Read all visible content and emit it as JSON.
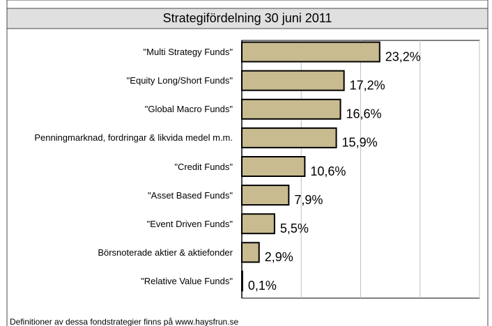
{
  "chart_data": {
    "type": "bar",
    "orientation": "horizontal",
    "title": "Strategifördelning 30 juni 2011",
    "categories": [
      "\"Multi Strategy Funds\"",
      "\"Equity Long/Short Funds\"",
      "\"Global Macro Funds\"",
      "Penningmarknad, fordringar & likvida medel m.m.",
      "\"Credit Funds\"",
      "\"Asset Based Funds\"",
      "\"Event Driven Funds\"",
      "Börsnoterade aktier & aktiefonder",
      "\"Relative Value Funds\""
    ],
    "values": [
      23.2,
      17.2,
      16.6,
      15.9,
      10.6,
      7.9,
      5.5,
      2.9,
      0.1
    ],
    "value_labels": [
      "23,2%",
      "17,2%",
      "16,6%",
      "15,9%",
      "10,6%",
      "7,9%",
      "5,5%",
      "2,9%",
      "0,1%"
    ],
    "color": "#c8bb90",
    "xlim": [
      0,
      40
    ],
    "xticks": [
      0,
      10,
      20,
      30,
      40
    ],
    "grid": true,
    "footnote": "Definitioner av dessa fondstrategier finns på www.haysfrun.se"
  }
}
